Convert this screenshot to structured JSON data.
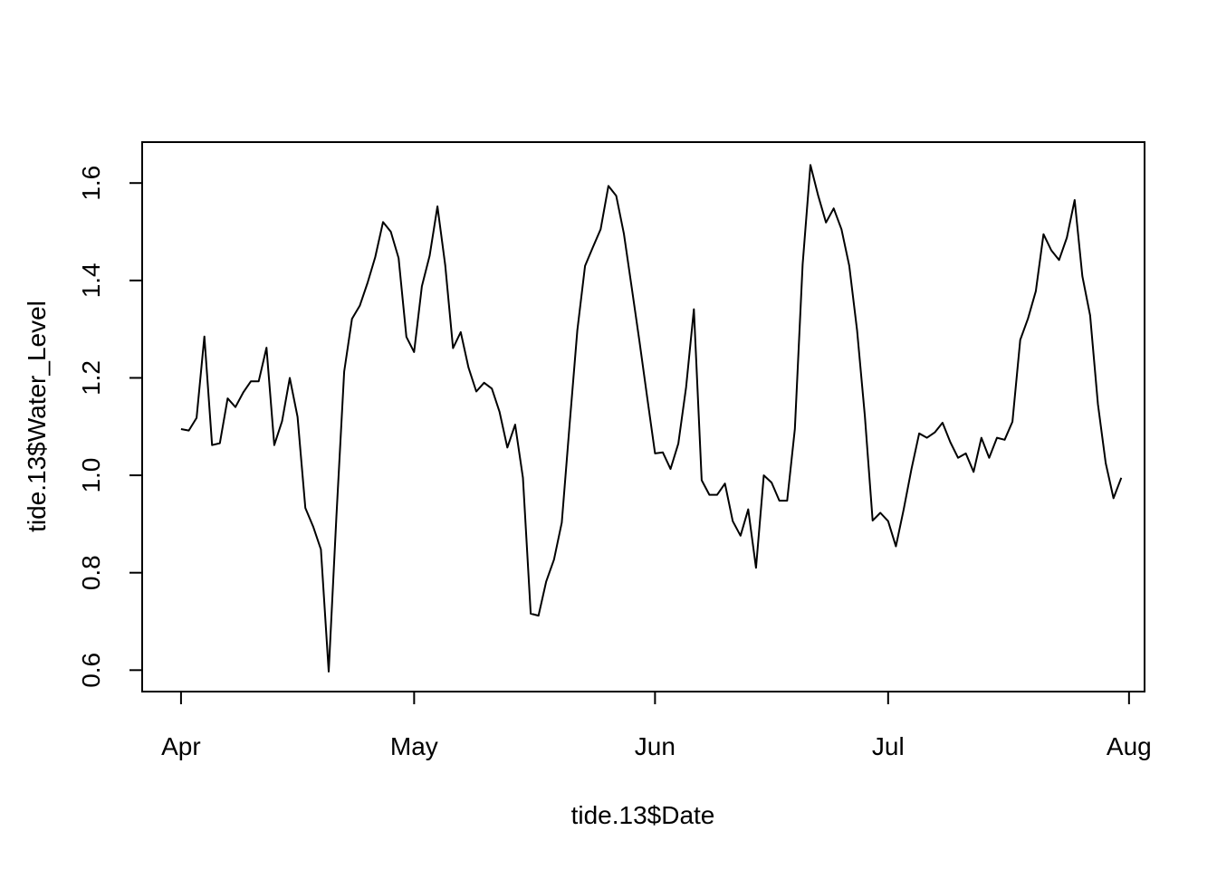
{
  "chart_data": {
    "type": "line",
    "xlabel": "tide.13$Date",
    "ylabel": "tide.13$Water_Level",
    "xlim": [
      "2020-03-27",
      "2020-08-03"
    ],
    "ylim": [
      0.556,
      1.684
    ],
    "x_ticks": [
      {
        "date": "2020-04-01",
        "label": "Apr"
      },
      {
        "date": "2020-05-01",
        "label": "May"
      },
      {
        "date": "2020-06-01",
        "label": "Jun"
      },
      {
        "date": "2020-07-01",
        "label": "Jul"
      },
      {
        "date": "2020-08-01",
        "label": "Aug"
      }
    ],
    "y_ticks": [
      0.6,
      0.8,
      1.0,
      1.2,
      1.4,
      1.6
    ],
    "y_tick_labels": [
      "0.6",
      "0.8",
      "1.0",
      "1.2",
      "1.4",
      "1.6"
    ],
    "grid": false,
    "series": [
      {
        "color": "#000000",
        "points": [
          [
            "2020-04-01",
            1.095
          ],
          [
            "2020-04-02",
            1.092
          ],
          [
            "2020-04-03",
            1.118
          ],
          [
            "2020-04-04",
            1.285
          ],
          [
            "2020-04-05",
            1.062
          ],
          [
            "2020-04-06",
            1.066
          ],
          [
            "2020-04-07",
            1.158
          ],
          [
            "2020-04-08",
            1.14
          ],
          [
            "2020-04-09",
            1.17
          ],
          [
            "2020-04-10",
            1.193
          ],
          [
            "2020-04-11",
            1.193
          ],
          [
            "2020-04-12",
            1.262
          ],
          [
            "2020-04-13",
            1.062
          ],
          [
            "2020-04-14",
            1.111
          ],
          [
            "2020-04-15",
            1.2
          ],
          [
            "2020-04-16",
            1.12
          ],
          [
            "2020-04-17",
            0.933
          ],
          [
            "2020-04-18",
            0.895
          ],
          [
            "2020-04-19",
            0.848
          ],
          [
            "2020-04-20",
            0.597
          ],
          [
            "2020-04-21",
            0.915
          ],
          [
            "2020-04-22",
            1.213
          ],
          [
            "2020-04-23",
            1.321
          ],
          [
            "2020-04-24",
            1.348
          ],
          [
            "2020-04-25",
            1.395
          ],
          [
            "2020-04-26",
            1.448
          ],
          [
            "2020-04-27",
            1.52
          ],
          [
            "2020-04-28",
            1.5
          ],
          [
            "2020-04-29",
            1.446
          ],
          [
            "2020-04-30",
            1.284
          ],
          [
            "2020-05-01",
            1.253
          ],
          [
            "2020-05-02",
            1.388
          ],
          [
            "2020-05-03",
            1.451
          ],
          [
            "2020-05-04",
            1.552
          ],
          [
            "2020-05-05",
            1.431
          ],
          [
            "2020-05-06",
            1.261
          ],
          [
            "2020-05-07",
            1.294
          ],
          [
            "2020-05-08",
            1.221
          ],
          [
            "2020-05-09",
            1.172
          ],
          [
            "2020-05-10",
            1.19
          ],
          [
            "2020-05-11",
            1.178
          ],
          [
            "2020-05-12",
            1.13
          ],
          [
            "2020-05-13",
            1.057
          ],
          [
            "2020-05-14",
            1.104
          ],
          [
            "2020-05-15",
            0.995
          ],
          [
            "2020-05-16",
            0.716
          ],
          [
            "2020-05-17",
            0.712
          ],
          [
            "2020-05-18",
            0.782
          ],
          [
            "2020-05-19",
            0.827
          ],
          [
            "2020-05-20",
            0.903
          ],
          [
            "2020-05-21",
            1.103
          ],
          [
            "2020-05-22",
            1.298
          ],
          [
            "2020-05-23",
            1.43
          ],
          [
            "2020-05-24",
            1.468
          ],
          [
            "2020-05-25",
            1.505
          ],
          [
            "2020-05-26",
            1.594
          ],
          [
            "2020-05-27",
            1.574
          ],
          [
            "2020-05-28",
            1.496
          ],
          [
            "2020-05-29",
            1.386
          ],
          [
            "2020-05-30",
            1.275
          ],
          [
            "2020-05-31",
            1.159
          ],
          [
            "2020-06-01",
            1.045
          ],
          [
            "2020-06-02",
            1.047
          ],
          [
            "2020-06-03",
            1.013
          ],
          [
            "2020-06-04",
            1.065
          ],
          [
            "2020-06-05",
            1.181
          ],
          [
            "2020-06-06",
            1.341
          ],
          [
            "2020-06-07",
            0.99
          ],
          [
            "2020-06-08",
            0.96
          ],
          [
            "2020-06-09",
            0.96
          ],
          [
            "2020-06-10",
            0.983
          ],
          [
            "2020-06-11",
            0.906
          ],
          [
            "2020-06-12",
            0.876
          ],
          [
            "2020-06-13",
            0.93
          ],
          [
            "2020-06-14",
            0.81
          ],
          [
            "2020-06-15",
            1.0
          ],
          [
            "2020-06-16",
            0.985
          ],
          [
            "2020-06-17",
            0.948
          ],
          [
            "2020-06-18",
            0.948
          ],
          [
            "2020-06-19",
            1.095
          ],
          [
            "2020-06-20",
            1.433
          ],
          [
            "2020-06-21",
            1.637
          ],
          [
            "2020-06-22",
            1.574
          ],
          [
            "2020-06-23",
            1.519
          ],
          [
            "2020-06-24",
            1.548
          ],
          [
            "2020-06-25",
            1.505
          ],
          [
            "2020-06-26",
            1.43
          ],
          [
            "2020-06-27",
            1.298
          ],
          [
            "2020-06-28",
            1.122
          ],
          [
            "2020-06-29",
            0.907
          ],
          [
            "2020-06-30",
            0.923
          ],
          [
            "2020-07-01",
            0.906
          ],
          [
            "2020-07-02",
            0.854
          ],
          [
            "2020-07-03",
            0.93
          ],
          [
            "2020-07-04",
            1.013
          ],
          [
            "2020-07-05",
            1.086
          ],
          [
            "2020-07-06",
            1.077
          ],
          [
            "2020-07-07",
            1.088
          ],
          [
            "2020-07-08",
            1.108
          ],
          [
            "2020-07-09",
            1.068
          ],
          [
            "2020-07-10",
            1.036
          ],
          [
            "2020-07-11",
            1.045
          ],
          [
            "2020-07-12",
            1.007
          ],
          [
            "2020-07-13",
            1.077
          ],
          [
            "2020-07-14",
            1.036
          ],
          [
            "2020-07-15",
            1.077
          ],
          [
            "2020-07-16",
            1.073
          ],
          [
            "2020-07-17",
            1.11
          ],
          [
            "2020-07-18",
            1.278
          ],
          [
            "2020-07-19",
            1.322
          ],
          [
            "2020-07-20",
            1.378
          ],
          [
            "2020-07-21",
            1.495
          ],
          [
            "2020-07-22",
            1.462
          ],
          [
            "2020-07-23",
            1.442
          ],
          [
            "2020-07-24",
            1.488
          ],
          [
            "2020-07-25",
            1.565
          ],
          [
            "2020-07-26",
            1.409
          ],
          [
            "2020-07-27",
            1.328
          ],
          [
            "2020-07-28",
            1.146
          ],
          [
            "2020-07-29",
            1.025
          ],
          [
            "2020-07-30",
            0.953
          ],
          [
            "2020-07-31",
            0.995
          ]
        ]
      }
    ]
  }
}
